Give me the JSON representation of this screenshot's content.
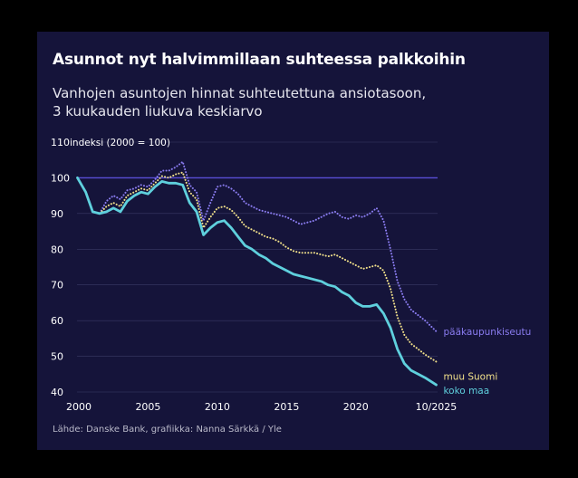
{
  "title": "Asunnot nyt halvimmillaan suhteessa palkkoihin",
  "subtitle_line1": "Vanhojen asuntojen hinnat suhteutettuna ansiotasoon,",
  "subtitle_line2": "3 kuukauden liukuva keskiarvo",
  "source": "Lähde: Danske Bank, grafiikka: Nanna Särkkä / Yle",
  "colors": {
    "background": "#15143a",
    "reference_line": "#5a4ed6",
    "gridline": "#3a3a66",
    "paakaupunkiseutu": "#8a7cf0",
    "muu_suomi": "#f1e08a",
    "koko_maa": "#5fd0dd"
  },
  "chart_data": {
    "type": "line",
    "title": "Asunnot nyt halvimmillaan suhteessa palkkoihin",
    "ylabel": "indeksi (2000 = 100)",
    "xlabel": "",
    "ylim": [
      40,
      110
    ],
    "xlim": [
      2000,
      2025.9
    ],
    "yticks": [
      110,
      100,
      90,
      80,
      70,
      60,
      50,
      40
    ],
    "xticks": [
      {
        "value": 2000,
        "label": "2000"
      },
      {
        "value": 2005,
        "label": "2005"
      },
      {
        "value": 2010,
        "label": "2010"
      },
      {
        "value": 2015,
        "label": "2015"
      },
      {
        "value": 2020,
        "label": "2020"
      },
      {
        "value": 2025.8,
        "label": "10/2025"
      }
    ],
    "reference_value": 100,
    "series": [
      {
        "name": "pääkaupunkiseutu",
        "style": "dotted",
        "x": [
          1999.9,
          2000.5,
          2001.0,
          2001.5,
          2002.0,
          2002.5,
          2003.0,
          2003.5,
          2004.0,
          2004.5,
          2005.0,
          2005.5,
          2006.0,
          2006.5,
          2007.0,
          2007.5,
          2008.0,
          2008.5,
          2009.0,
          2009.5,
          2010.0,
          2010.5,
          2011.0,
          2011.5,
          2012.0,
          2012.5,
          2013.0,
          2013.5,
          2014.0,
          2014.5,
          2015.0,
          2015.5,
          2016.0,
          2016.5,
          2017.0,
          2017.5,
          2018.0,
          2018.5,
          2019.0,
          2019.5,
          2020.0,
          2020.5,
          2021.0,
          2021.5,
          2022.0,
          2022.5,
          2023.0,
          2023.5,
          2024.0,
          2024.5,
          2025.0,
          2025.8
        ],
        "values": [
          100.0,
          96.0,
          90.5,
          90.0,
          93.5,
          95.0,
          94.0,
          96.5,
          97.0,
          98.0,
          97.5,
          99.5,
          102.0,
          102.0,
          103.0,
          104.5,
          98.0,
          96.0,
          88.0,
          93.0,
          97.5,
          98.0,
          97.0,
          95.5,
          93.0,
          92.0,
          91.0,
          90.5,
          90.0,
          89.5,
          89.0,
          88.0,
          87.0,
          87.5,
          88.0,
          89.0,
          90.0,
          90.5,
          89.0,
          88.5,
          89.5,
          89.0,
          90.0,
          91.5,
          88.0,
          80.0,
          71.0,
          66.0,
          63.0,
          61.5,
          60.0,
          57.0
        ]
      },
      {
        "name": "muu Suomi",
        "style": "dotted",
        "x": [
          1999.9,
          2000.5,
          2001.0,
          2001.5,
          2002.0,
          2002.5,
          2003.0,
          2003.5,
          2004.0,
          2004.5,
          2005.0,
          2005.5,
          2006.0,
          2006.5,
          2007.0,
          2007.5,
          2008.0,
          2008.5,
          2009.0,
          2009.5,
          2010.0,
          2010.5,
          2011.0,
          2011.5,
          2012.0,
          2012.5,
          2013.0,
          2013.5,
          2014.0,
          2014.5,
          2015.0,
          2015.5,
          2016.0,
          2016.5,
          2017.0,
          2017.5,
          2018.0,
          2018.5,
          2019.0,
          2019.5,
          2020.0,
          2020.5,
          2021.0,
          2021.5,
          2022.0,
          2022.5,
          2023.0,
          2023.5,
          2024.0,
          2024.5,
          2025.0,
          2025.8
        ],
        "values": [
          100.0,
          96.0,
          90.5,
          90.0,
          92.0,
          93.0,
          92.0,
          95.0,
          96.0,
          97.0,
          96.5,
          98.5,
          100.5,
          100.0,
          101.0,
          101.5,
          96.0,
          94.0,
          86.0,
          89.0,
          91.5,
          92.0,
          91.0,
          89.0,
          86.5,
          85.5,
          84.5,
          83.5,
          83.0,
          82.0,
          80.5,
          79.5,
          79.0,
          79.0,
          79.0,
          78.5,
          78.0,
          78.5,
          77.5,
          76.5,
          75.5,
          74.5,
          75.0,
          75.5,
          74.0,
          69.0,
          61.0,
          56.0,
          53.5,
          52.0,
          50.5,
          48.5
        ]
      },
      {
        "name": "koko maa",
        "style": "solid",
        "x": [
          1999.9,
          2000.5,
          2001.0,
          2001.5,
          2002.0,
          2002.5,
          2003.0,
          2003.5,
          2004.0,
          2004.5,
          2005.0,
          2005.5,
          2006.0,
          2006.5,
          2007.0,
          2007.5,
          2008.0,
          2008.5,
          2009.0,
          2009.5,
          2010.0,
          2010.5,
          2011.0,
          2011.5,
          2012.0,
          2012.5,
          2013.0,
          2013.5,
          2014.0,
          2014.5,
          2015.0,
          2015.5,
          2016.0,
          2016.5,
          2017.0,
          2017.5,
          2018.0,
          2018.5,
          2019.0,
          2019.5,
          2020.0,
          2020.5,
          2021.0,
          2021.5,
          2022.0,
          2022.5,
          2023.0,
          2023.5,
          2024.0,
          2024.5,
          2025.0,
          2025.8
        ],
        "values": [
          100.0,
          96.0,
          90.5,
          90.0,
          90.5,
          91.5,
          90.5,
          93.5,
          95.0,
          96.0,
          95.5,
          97.5,
          99.0,
          98.5,
          98.5,
          98.0,
          93.0,
          90.5,
          84.0,
          86.0,
          87.5,
          88.0,
          86.0,
          83.5,
          81.0,
          80.0,
          78.5,
          77.5,
          76.0,
          75.0,
          74.0,
          73.0,
          72.5,
          72.0,
          71.5,
          71.0,
          70.0,
          69.5,
          68.0,
          67.0,
          65.0,
          64.0,
          64.0,
          64.5,
          62.0,
          58.0,
          52.0,
          48.0,
          46.0,
          45.0,
          44.0,
          42.0
        ]
      }
    ]
  }
}
